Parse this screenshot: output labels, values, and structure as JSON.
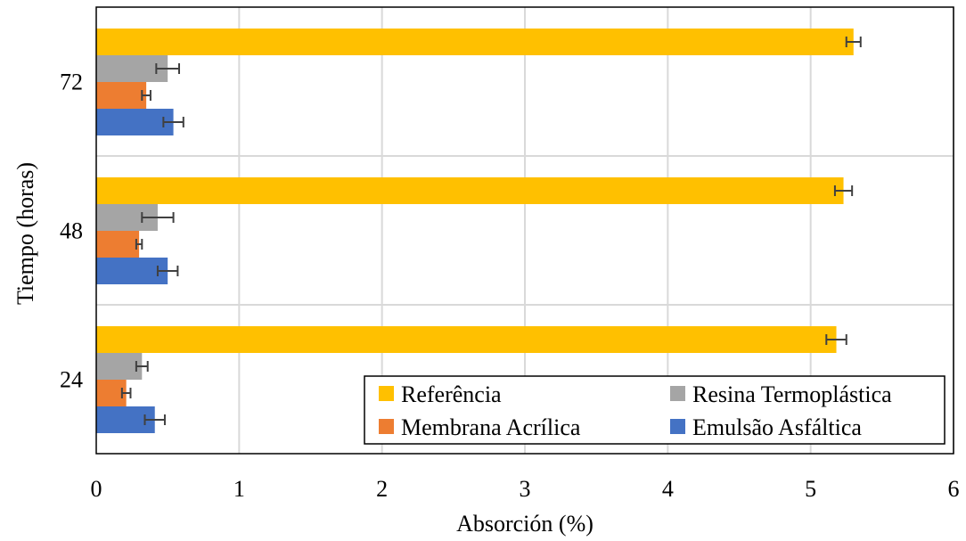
{
  "chart_data": {
    "type": "bar",
    "orientation": "horizontal",
    "categories": [
      "24",
      "48",
      "72"
    ],
    "xlabel": "Absorción (%)",
    "ylabel": "Tiempo (horas)",
    "xlim": [
      0,
      6
    ],
    "xticks": [
      0,
      1,
      2,
      3,
      4,
      5,
      6
    ],
    "grid": true,
    "legend_position": "bottom-right",
    "series": [
      {
        "name": "Referência",
        "color": "#FFC000",
        "values": [
          5.18,
          5.23,
          5.3
        ],
        "errors": [
          0.07,
          0.06,
          0.05
        ]
      },
      {
        "name": "Resina Termoplástica",
        "color": "#A5A5A5",
        "values": [
          0.32,
          0.43,
          0.5
        ],
        "errors": [
          0.04,
          0.11,
          0.08
        ]
      },
      {
        "name": "Membrana Acrílica",
        "color": "#ED7D31",
        "values": [
          0.21,
          0.3,
          0.35
        ],
        "errors": [
          0.03,
          0.02,
          0.03
        ]
      },
      {
        "name": "Emulsão Asfáltica",
        "color": "#4472C4",
        "values": [
          0.41,
          0.5,
          0.54
        ],
        "errors": [
          0.07,
          0.07,
          0.07
        ]
      }
    ],
    "legend_order": [
      "Referência",
      "Resina Termoplástica",
      "Membrana Acrílica",
      "Emulsão Asfáltica"
    ]
  }
}
